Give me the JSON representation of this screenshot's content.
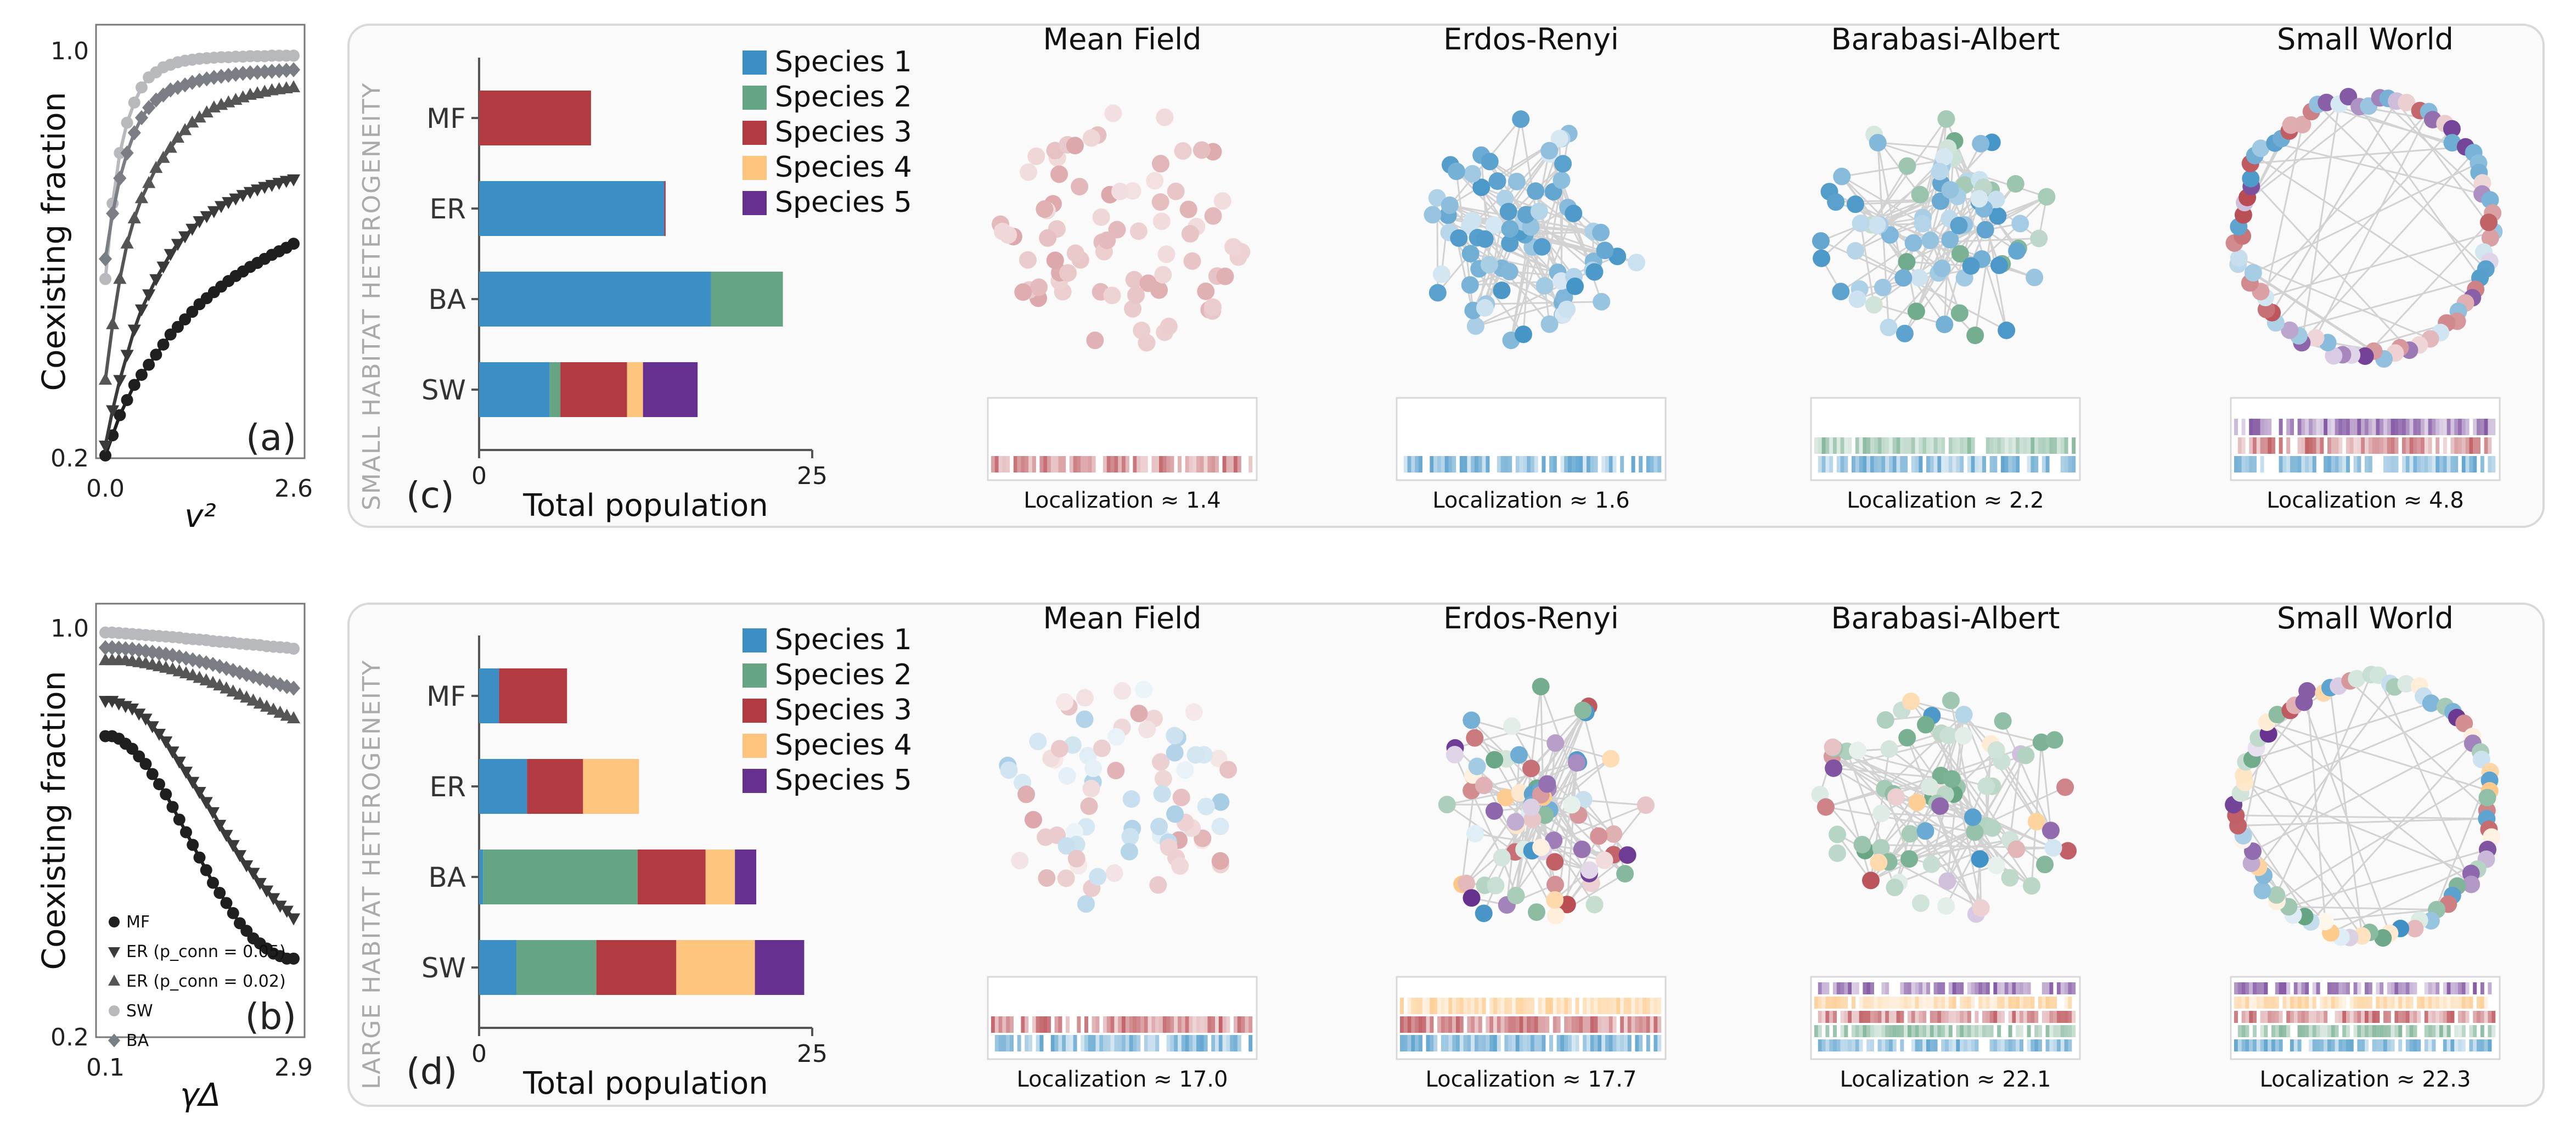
{
  "palette": {
    "species1": "#3b8fc4",
    "species2": "#66a583",
    "species3": "#b23b42",
    "species4": "#fdc47e",
    "species5": "#66318e",
    "mf": "#1f1f1f",
    "er05": "#3a3a3a",
    "er02": "#555555",
    "sw": "#b7b9bd",
    "ba": "#7a7d83"
  },
  "chart_data": [
    {
      "id": "a",
      "type": "scatter",
      "panel_label": "(a)",
      "ylabel": "Coexisting fraction",
      "xlabel": "v²",
      "xlim": [
        0.0,
        2.6
      ],
      "ylim": [
        0.2,
        1.0
      ],
      "xticks": [
        "0.0",
        "2.6"
      ],
      "yticks": [
        "0.2",
        "1.0"
      ],
      "series": [
        {
          "name": "MF",
          "marker": "circle",
          "x": [
            0.0,
            0.1,
            0.2,
            0.3,
            0.4,
            0.5,
            0.6,
            0.7,
            0.8,
            0.9,
            1.0,
            1.1,
            1.2,
            1.3,
            1.4,
            1.5,
            1.6,
            1.7,
            1.8,
            1.9,
            2.0,
            2.1,
            2.2,
            2.3,
            2.4,
            2.5,
            2.6
          ],
          "y": [
            0.2,
            0.24,
            0.28,
            0.31,
            0.34,
            0.36,
            0.38,
            0.4,
            0.42,
            0.44,
            0.455,
            0.47,
            0.485,
            0.5,
            0.512,
            0.524,
            0.535,
            0.546,
            0.556,
            0.565,
            0.574,
            0.582,
            0.59,
            0.598,
            0.605,
            0.612,
            0.62
          ]
        },
        {
          "name": "ER (p_conn = 0.05)",
          "marker": "triangle-down",
          "x": [
            0.0,
            0.1,
            0.2,
            0.3,
            0.4,
            0.5,
            0.6,
            0.7,
            0.8,
            0.9,
            1.0,
            1.1,
            1.2,
            1.3,
            1.4,
            1.5,
            1.6,
            1.7,
            1.8,
            1.9,
            2.0,
            2.1,
            2.2,
            2.3,
            2.4,
            2.5,
            2.6
          ],
          "y": [
            0.22,
            0.29,
            0.35,
            0.4,
            0.45,
            0.49,
            0.52,
            0.55,
            0.575,
            0.6,
            0.62,
            0.635,
            0.65,
            0.665,
            0.675,
            0.685,
            0.695,
            0.703,
            0.71,
            0.717,
            0.723,
            0.728,
            0.733,
            0.737,
            0.741,
            0.745,
            0.748
          ]
        },
        {
          "name": "ER (p_conn = 0.02)",
          "marker": "triangle-up",
          "x": [
            0.0,
            0.1,
            0.2,
            0.3,
            0.4,
            0.5,
            0.6,
            0.7,
            0.8,
            0.9,
            1.0,
            1.1,
            1.2,
            1.3,
            1.4,
            1.5,
            1.6,
            1.7,
            1.8,
            1.9,
            2.0,
            2.1,
            2.2,
            2.3,
            2.4,
            2.5,
            2.6
          ],
          "y": [
            0.35,
            0.46,
            0.55,
            0.62,
            0.67,
            0.71,
            0.74,
            0.77,
            0.79,
            0.81,
            0.83,
            0.845,
            0.86,
            0.87,
            0.88,
            0.89,
            0.895,
            0.9,
            0.905,
            0.91,
            0.915,
            0.918,
            0.921,
            0.924,
            0.926,
            0.928,
            0.93
          ]
        },
        {
          "name": "SW",
          "marker": "circle",
          "x": [
            0.0,
            0.1,
            0.2,
            0.3,
            0.4,
            0.5,
            0.6,
            0.7,
            0.8,
            0.9,
            1.0,
            1.1,
            1.2,
            1.3,
            1.4,
            1.5,
            1.6,
            1.7,
            1.8,
            1.9,
            2.0,
            2.1,
            2.2,
            2.3,
            2.4,
            2.5,
            2.6
          ],
          "y": [
            0.55,
            0.7,
            0.8,
            0.86,
            0.9,
            0.93,
            0.95,
            0.96,
            0.97,
            0.975,
            0.98,
            0.983,
            0.985,
            0.987,
            0.988,
            0.989,
            0.99,
            0.99,
            0.991,
            0.991,
            0.992,
            0.992,
            0.992,
            0.993,
            0.993,
            0.993,
            0.993
          ]
        },
        {
          "name": "BA",
          "marker": "diamond",
          "x": [
            0.0,
            0.1,
            0.2,
            0.3,
            0.4,
            0.5,
            0.6,
            0.7,
            0.8,
            0.9,
            1.0,
            1.1,
            1.2,
            1.3,
            1.4,
            1.5,
            1.6,
            1.7,
            1.8,
            1.9,
            2.0,
            2.1,
            2.2,
            2.3,
            2.4,
            2.5,
            2.6
          ],
          "y": [
            0.59,
            0.68,
            0.75,
            0.8,
            0.84,
            0.87,
            0.89,
            0.905,
            0.915,
            0.925,
            0.93,
            0.935,
            0.94,
            0.944,
            0.947,
            0.95,
            0.952,
            0.954,
            0.956,
            0.958,
            0.959,
            0.96,
            0.961,
            0.962,
            0.963,
            0.964,
            0.965
          ]
        }
      ]
    },
    {
      "id": "b",
      "type": "scatter",
      "panel_label": "(b)",
      "ylabel": "Coexisting fraction",
      "xlabel": "γΔ",
      "xlim": [
        0.1,
        2.9
      ],
      "ylim": [
        0.2,
        1.0
      ],
      "xticks": [
        "0.1",
        "2.9"
      ],
      "yticks": [
        "0.2",
        "1.0"
      ],
      "legend": [
        "MF",
        "ER (p_conn = 0.05)",
        "ER (p_conn = 0.02)",
        "SW",
        "BA"
      ],
      "series": [
        {
          "name": "MF",
          "marker": "circle",
          "x": [
            0.1,
            0.2,
            0.3,
            0.4,
            0.5,
            0.6,
            0.7,
            0.8,
            0.9,
            1.0,
            1.1,
            1.2,
            1.3,
            1.4,
            1.5,
            1.6,
            1.7,
            1.8,
            1.9,
            2.0,
            2.1,
            2.2,
            2.3,
            2.4,
            2.5,
            2.6,
            2.7,
            2.8,
            2.9
          ],
          "y": [
            0.79,
            0.79,
            0.785,
            0.775,
            0.765,
            0.75,
            0.735,
            0.715,
            0.695,
            0.675,
            0.65,
            0.625,
            0.6,
            0.575,
            0.55,
            0.525,
            0.5,
            0.48,
            0.46,
            0.44,
            0.42,
            0.405,
            0.39,
            0.38,
            0.37,
            0.36,
            0.355,
            0.35,
            0.35
          ]
        },
        {
          "name": "ER (p_conn = 0.05)",
          "marker": "triangle-down",
          "x": [
            0.1,
            0.2,
            0.3,
            0.4,
            0.5,
            0.6,
            0.7,
            0.8,
            0.9,
            1.0,
            1.1,
            1.2,
            1.3,
            1.4,
            1.5,
            1.6,
            1.7,
            1.8,
            1.9,
            2.0,
            2.1,
            2.2,
            2.3,
            2.4,
            2.5,
            2.6,
            2.7,
            2.8,
            2.9
          ],
          "y": [
            0.86,
            0.86,
            0.855,
            0.85,
            0.845,
            0.835,
            0.825,
            0.81,
            0.795,
            0.78,
            0.76,
            0.74,
            0.72,
            0.7,
            0.68,
            0.66,
            0.64,
            0.615,
            0.595,
            0.575,
            0.555,
            0.535,
            0.52,
            0.5,
            0.485,
            0.47,
            0.455,
            0.445,
            0.43
          ]
        },
        {
          "name": "ER (p_conn = 0.02)",
          "marker": "triangle-up",
          "x": [
            0.1,
            0.2,
            0.3,
            0.4,
            0.5,
            0.6,
            0.7,
            0.8,
            0.9,
            1.0,
            1.1,
            1.2,
            1.3,
            1.4,
            1.5,
            1.6,
            1.7,
            1.8,
            1.9,
            2.0,
            2.1,
            2.2,
            2.3,
            2.4,
            2.5,
            2.6,
            2.7,
            2.8,
            2.9
          ],
          "y": [
            0.94,
            0.94,
            0.94,
            0.94,
            0.938,
            0.936,
            0.934,
            0.931,
            0.928,
            0.925,
            0.922,
            0.918,
            0.914,
            0.91,
            0.905,
            0.9,
            0.895,
            0.89,
            0.884,
            0.878,
            0.872,
            0.866,
            0.86,
            0.854,
            0.848,
            0.842,
            0.836,
            0.83,
            0.825
          ]
        },
        {
          "name": "SW",
          "marker": "circle",
          "x": [
            0.1,
            0.2,
            0.3,
            0.4,
            0.5,
            0.6,
            0.7,
            0.8,
            0.9,
            1.0,
            1.1,
            1.2,
            1.3,
            1.4,
            1.5,
            1.6,
            1.7,
            1.8,
            1.9,
            2.0,
            2.1,
            2.2,
            2.3,
            2.4,
            2.5,
            2.6,
            2.7,
            2.8,
            2.9
          ],
          "y": [
            0.995,
            0.995,
            0.994,
            0.993,
            0.992,
            0.991,
            0.99,
            0.989,
            0.988,
            0.987,
            0.986,
            0.985,
            0.983,
            0.982,
            0.981,
            0.98,
            0.978,
            0.977,
            0.976,
            0.975,
            0.973,
            0.972,
            0.971,
            0.97,
            0.968,
            0.967,
            0.966,
            0.965,
            0.963
          ]
        },
        {
          "name": "BA",
          "marker": "diamond",
          "x": [
            0.1,
            0.2,
            0.3,
            0.4,
            0.5,
            0.6,
            0.7,
            0.8,
            0.9,
            1.0,
            1.1,
            1.2,
            1.3,
            1.4,
            1.5,
            1.6,
            1.7,
            1.8,
            1.9,
            2.0,
            2.1,
            2.2,
            2.3,
            2.4,
            2.5,
            2.6,
            2.7,
            2.8,
            2.9
          ],
          "y": [
            0.965,
            0.965,
            0.964,
            0.963,
            0.962,
            0.96,
            0.958,
            0.956,
            0.954,
            0.952,
            0.95,
            0.947,
            0.944,
            0.941,
            0.938,
            0.935,
            0.932,
            0.928,
            0.924,
            0.92,
            0.916,
            0.912,
            0.908,
            0.904,
            0.9,
            0.896,
            0.892,
            0.888,
            0.885
          ]
        }
      ]
    },
    {
      "id": "c",
      "type": "bar",
      "orientation": "horizontal",
      "stacked": true,
      "panel_label": "(c)",
      "side_title": "SMALL HABITAT HETEROGENEITY",
      "xlabel": "Total population",
      "xlim": [
        0,
        25
      ],
      "xticks": [
        "0",
        "25"
      ],
      "categories": [
        "MF",
        "ER",
        "BA",
        "SW"
      ],
      "legend": [
        "Species 1",
        "Species 2",
        "Species 3",
        "Species 4",
        "Species 5"
      ],
      "series": [
        {
          "name": "Species 1",
          "values": [
            0,
            13.9,
            17.4,
            5.3
          ]
        },
        {
          "name": "Species 2",
          "values": [
            0,
            0,
            5.4,
            0.8
          ]
        },
        {
          "name": "Species 3",
          "values": [
            8.4,
            0.1,
            0,
            5.0
          ]
        },
        {
          "name": "Species 4",
          "values": [
            0,
            0,
            0,
            1.2
          ]
        },
        {
          "name": "Species 5",
          "values": [
            0,
            0,
            0,
            4.1
          ]
        }
      ],
      "networks": [
        {
          "title": "Mean Field",
          "localization": "Localization ≈ 1.4"
        },
        {
          "title": "Erdos-Renyi",
          "localization": "Localization ≈ 1.6"
        },
        {
          "title": "Barabasi-Albert",
          "localization": "Localization ≈ 2.2"
        },
        {
          "title": "Small World",
          "localization": "Localization ≈ 4.8"
        }
      ]
    },
    {
      "id": "d",
      "type": "bar",
      "orientation": "horizontal",
      "stacked": true,
      "panel_label": "(d)",
      "side_title": "LARGE HABITAT HETEROGENEITY",
      "xlabel": "Total population",
      "xlim": [
        0,
        25
      ],
      "xticks": [
        "0",
        "25"
      ],
      "categories": [
        "MF",
        "ER",
        "BA",
        "SW"
      ],
      "legend": [
        "Species 1",
        "Species 2",
        "Species 3",
        "Species 4",
        "Species 5"
      ],
      "series": [
        {
          "name": "Species 1",
          "values": [
            1.5,
            3.6,
            0.3,
            2.8
          ]
        },
        {
          "name": "Species 2",
          "values": [
            0,
            0,
            11.6,
            6.0
          ]
        },
        {
          "name": "Species 3",
          "values": [
            5.1,
            4.2,
            5.1,
            6.0
          ]
        },
        {
          "name": "Species 4",
          "values": [
            0,
            4.2,
            2.2,
            5.9
          ]
        },
        {
          "name": "Species 5",
          "values": [
            0,
            0,
            1.6,
            3.7
          ]
        }
      ],
      "networks": [
        {
          "title": "Mean Field",
          "localization": "Localization ≈ 17.0"
        },
        {
          "title": "Erdos-Renyi",
          "localization": "Localization ≈ 17.7"
        },
        {
          "title": "Barabasi-Albert",
          "localization": "Localization ≈ 22.1"
        },
        {
          "title": "Small World",
          "localization": "Localization ≈ 22.3"
        }
      ]
    }
  ]
}
